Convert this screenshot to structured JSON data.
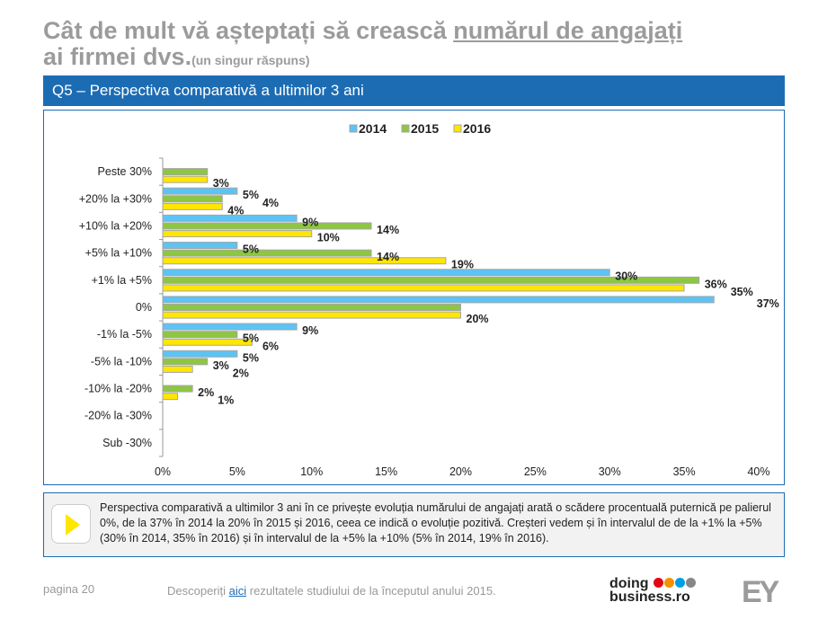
{
  "title": {
    "line1_pre": "Cât de mult vă așteptați să crească ",
    "line1_underlined": "numărul de angajați",
    "line2": "ai firmei dvs.",
    "note": "(un singur răspuns)"
  },
  "question": "Q5 – Perspectiva comparativă a ultimilor 3 ani",
  "chart_data": {
    "type": "bar",
    "orientation": "horizontal",
    "categories": [
      "Peste 30%",
      "+20% la +30%",
      "+10% la +20%",
      "+5% la +10%",
      "+1% la +5%",
      "0%",
      "-1% la -5%",
      "-5% la -10%",
      "-10% la -20%",
      "-20% la -30%",
      "Sub -30%"
    ],
    "series": [
      {
        "name": "2014",
        "color": "#5bc4f5",
        "values": [
          0,
          5,
          9,
          5,
          30,
          37,
          9,
          5,
          0,
          0,
          0
        ],
        "labels": [
          "",
          "5%",
          "9%",
          "5%",
          "30%",
          "37%",
          "9%",
          "5%",
          "",
          "",
          ""
        ]
      },
      {
        "name": "2015",
        "color": "#8dc641",
        "values": [
          3,
          4,
          14,
          14,
          36,
          20,
          5,
          3,
          2,
          0,
          0
        ],
        "labels": [
          "",
          "4%",
          "14%",
          "14%",
          "36%",
          "",
          "5%",
          "3%",
          "2%",
          "",
          ""
        ]
      },
      {
        "name": "2016",
        "color": "#ffe600",
        "values": [
          3,
          4,
          10,
          19,
          35,
          20,
          6,
          2,
          1,
          0,
          0
        ],
        "labels": [
          "3%",
          "4%",
          "10%",
          "19%",
          "35%",
          "20%",
          "6%",
          "2%",
          "1%",
          "",
          ""
        ]
      }
    ],
    "xlim": [
      0,
      40
    ],
    "xticks": [
      "0%",
      "5%",
      "10%",
      "15%",
      "20%",
      "25%",
      "30%",
      "35%",
      "40%"
    ],
    "legend": "top-center",
    "grid": false
  },
  "note": "Perspectiva comparativă a ultimilor 3 ani în ce privește evoluția numărului de angajați arată o scădere procentuală puternică pe palierul 0%, de la 37% în 2014 la 20% în 2015 și 2016, ceea ce indică o evoluție pozitivă. Creșteri vedem și în intervalul de de la +1% la +5% (30% în 2014, 35% în 2016) și în intervalul de la +5% la +10% (5% în 2014, 19% în 2016).",
  "footer": {
    "page": "pagina 20",
    "link_pre": "Descoperiți ",
    "link": "aici",
    "link_post": " rezultatele studiului de la începutul anului 2015.",
    "logo1_line1": "doing",
    "logo1_line2": "business.ro",
    "logo1_dots": [
      "#e30613",
      "#f39200",
      "#009fe3",
      "#878787"
    ],
    "logo2": "EY"
  }
}
